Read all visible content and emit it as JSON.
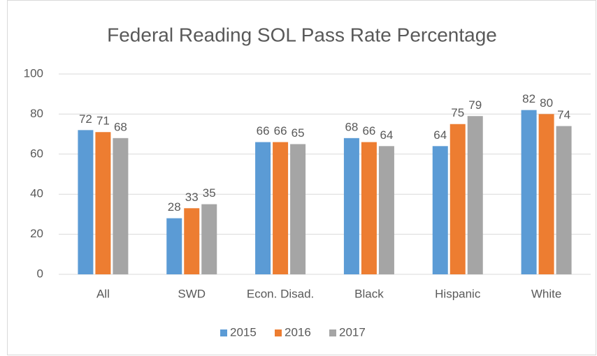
{
  "chart_data": {
    "type": "bar",
    "title": "Federal Reading SOL Pass Rate Percentage",
    "categories": [
      "All",
      "SWD",
      "Econ. Disad.",
      "Black",
      "Hispanic",
      "White"
    ],
    "series": [
      {
        "name": "2015",
        "color": "#5b9bd5",
        "values": [
          72,
          28,
          66,
          68,
          64,
          82
        ]
      },
      {
        "name": "2016",
        "color": "#ed7d31",
        "values": [
          71,
          33,
          66,
          66,
          75,
          80
        ]
      },
      {
        "name": "2017",
        "color": "#a5a5a5",
        "values": [
          68,
          35,
          65,
          64,
          79,
          74
        ]
      }
    ],
    "ylim": [
      0,
      100
    ],
    "yticks": [
      0,
      20,
      40,
      60,
      80,
      100
    ],
    "grid": true,
    "legend": "bottom"
  }
}
